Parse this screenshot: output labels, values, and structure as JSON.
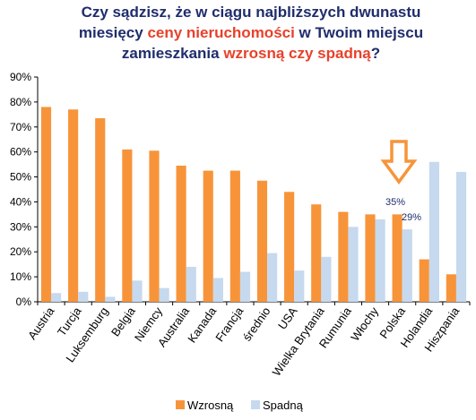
{
  "title": {
    "line1": "Czy sądzisz, że w ciągu najbliższych dwunastu",
    "line2_a": "miesięcy ",
    "line2_b": "ceny nieruchomości",
    "line2_c": " w Twoim miejscu",
    "line3_a": "zamieszkania ",
    "line3_b": "wzrosną czy spadną",
    "line3_c": "?"
  },
  "annotations": {
    "polska_up": "35%",
    "polska_down": "29%"
  },
  "colors": {
    "title": "#1f2d6b",
    "highlight": "#e8412a",
    "wzrosna": "#f7943a",
    "spadna": "#c6d9ee",
    "arrow": "#f7943a"
  },
  "chart_data": {
    "type": "bar",
    "categories": [
      "Austria",
      "Turcja",
      "Luksemburg",
      "Belgia",
      "Niemcy",
      "Australia",
      "Kanada",
      "Francja",
      "średnio",
      "USA",
      "Wielka Brytania",
      "Rumunia",
      "Włochy",
      "Polska",
      "Holandia",
      "Hiszpania"
    ],
    "series": [
      {
        "name": "Wzrosną",
        "values": [
          78,
          77,
          73.5,
          61,
          60.5,
          54.5,
          52.5,
          52.5,
          48.5,
          44,
          39,
          36,
          35,
          35,
          17,
          11
        ]
      },
      {
        "name": "Spadną",
        "values": [
          3.5,
          4,
          2,
          8.5,
          5.5,
          14,
          9.5,
          12,
          19.5,
          12.5,
          18,
          30,
          33,
          29,
          56,
          52
        ]
      }
    ],
    "ylim": [
      0,
      90
    ],
    "yticks": [
      "0%",
      "10%",
      "20%",
      "30%",
      "40%",
      "50%",
      "60%",
      "70%",
      "80%",
      "90%"
    ],
    "grid": false,
    "legend": "bottom"
  }
}
